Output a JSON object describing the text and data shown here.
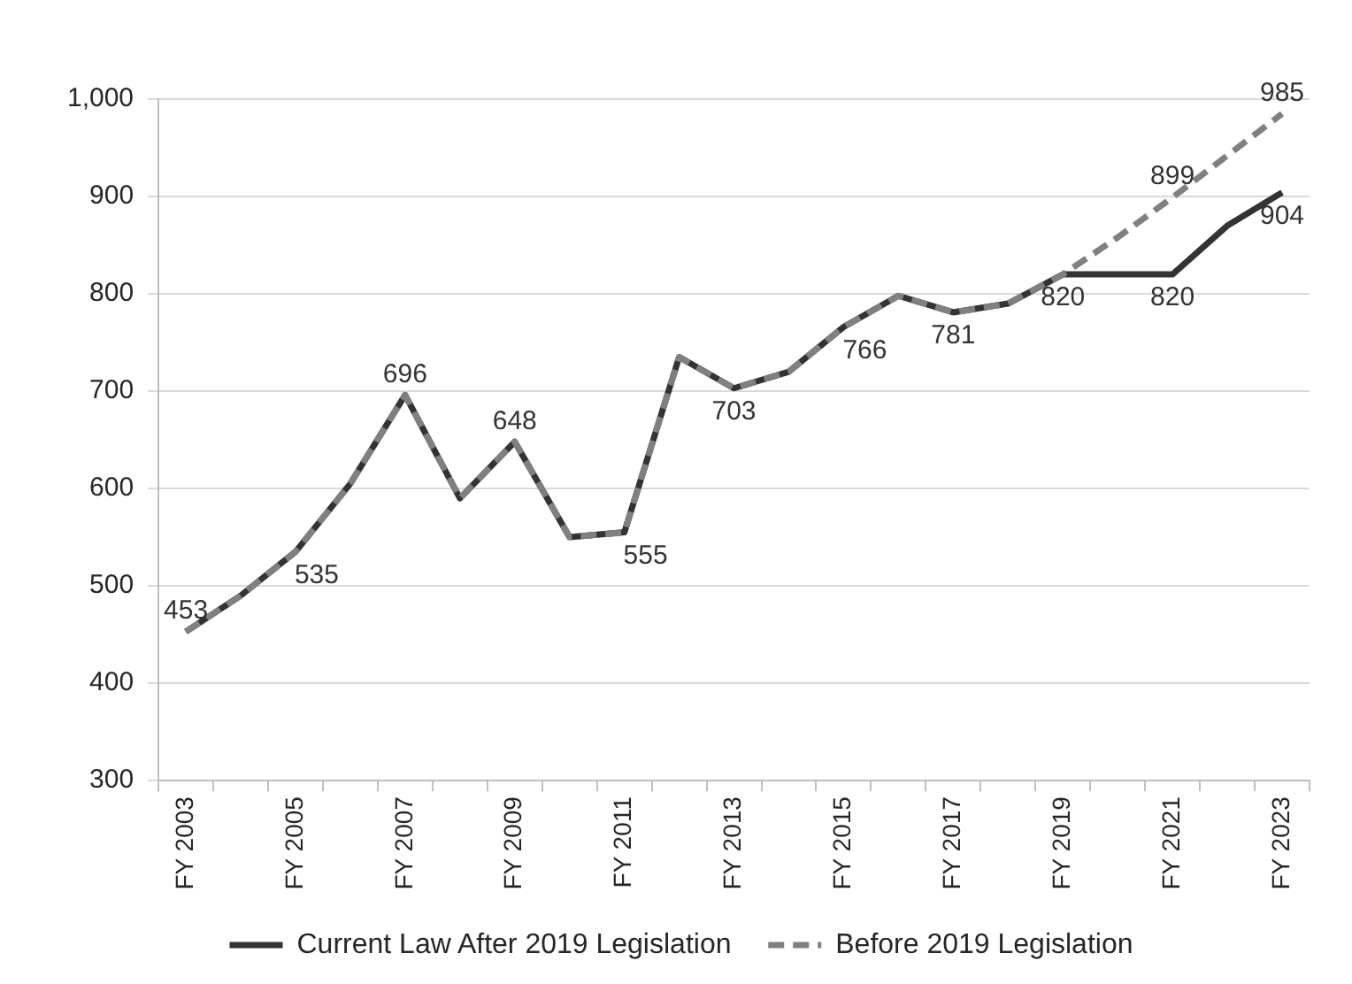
{
  "chart_data": {
    "type": "line",
    "categories": [
      "FY 2003",
      null,
      "FY 2005",
      null,
      "FY 2007",
      null,
      "FY 2009",
      null,
      "FY 2011",
      null,
      "FY 2013",
      null,
      "FY 2015",
      null,
      "FY 2017",
      null,
      "FY 2019",
      null,
      "FY 2021",
      null,
      "FY 2023"
    ],
    "series": [
      {
        "name": "Current Law After 2019 Legislation",
        "color": "#333333",
        "line_style": "solid",
        "values": [
          453,
          490,
          535,
          605,
          696,
          590,
          648,
          550,
          555,
          735,
          703,
          720,
          766,
          798,
          781,
          790,
          820,
          820,
          820,
          870,
          904
        ],
        "value_labels": [
          "453",
          null,
          "535",
          null,
          "696",
          null,
          "648",
          null,
          "555",
          null,
          "703",
          null,
          "766",
          null,
          "781",
          null,
          "820",
          null,
          "820",
          null,
          "904"
        ]
      },
      {
        "name": "Before 2019 Legislation",
        "color": "#808080",
        "line_style": "dashed",
        "values": [
          453,
          490,
          535,
          605,
          696,
          590,
          648,
          550,
          555,
          735,
          703,
          720,
          766,
          798,
          781,
          790,
          820,
          858,
          899,
          942,
          985
        ],
        "value_labels": [
          null,
          null,
          null,
          null,
          null,
          null,
          null,
          null,
          null,
          null,
          null,
          null,
          null,
          null,
          null,
          null,
          null,
          null,
          "899",
          null,
          "985"
        ]
      }
    ],
    "ylim": [
      300,
      1000
    ],
    "yticks": [
      300,
      400,
      500,
      600,
      700,
      800,
      900,
      {
        "value": 1000,
        "label": "1,000"
      }
    ],
    "grid": "y",
    "legend": "bottom"
  }
}
